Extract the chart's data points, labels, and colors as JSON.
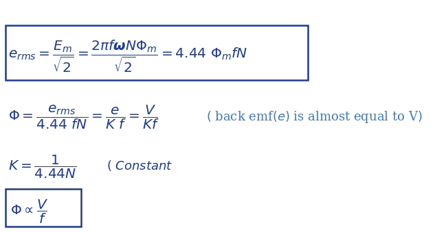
{
  "bg_color": "#ffffff",
  "text_color": "#1a3a9c",
  "fig_width": 6.49,
  "fig_height": 3.39,
  "dpi": 100
}
